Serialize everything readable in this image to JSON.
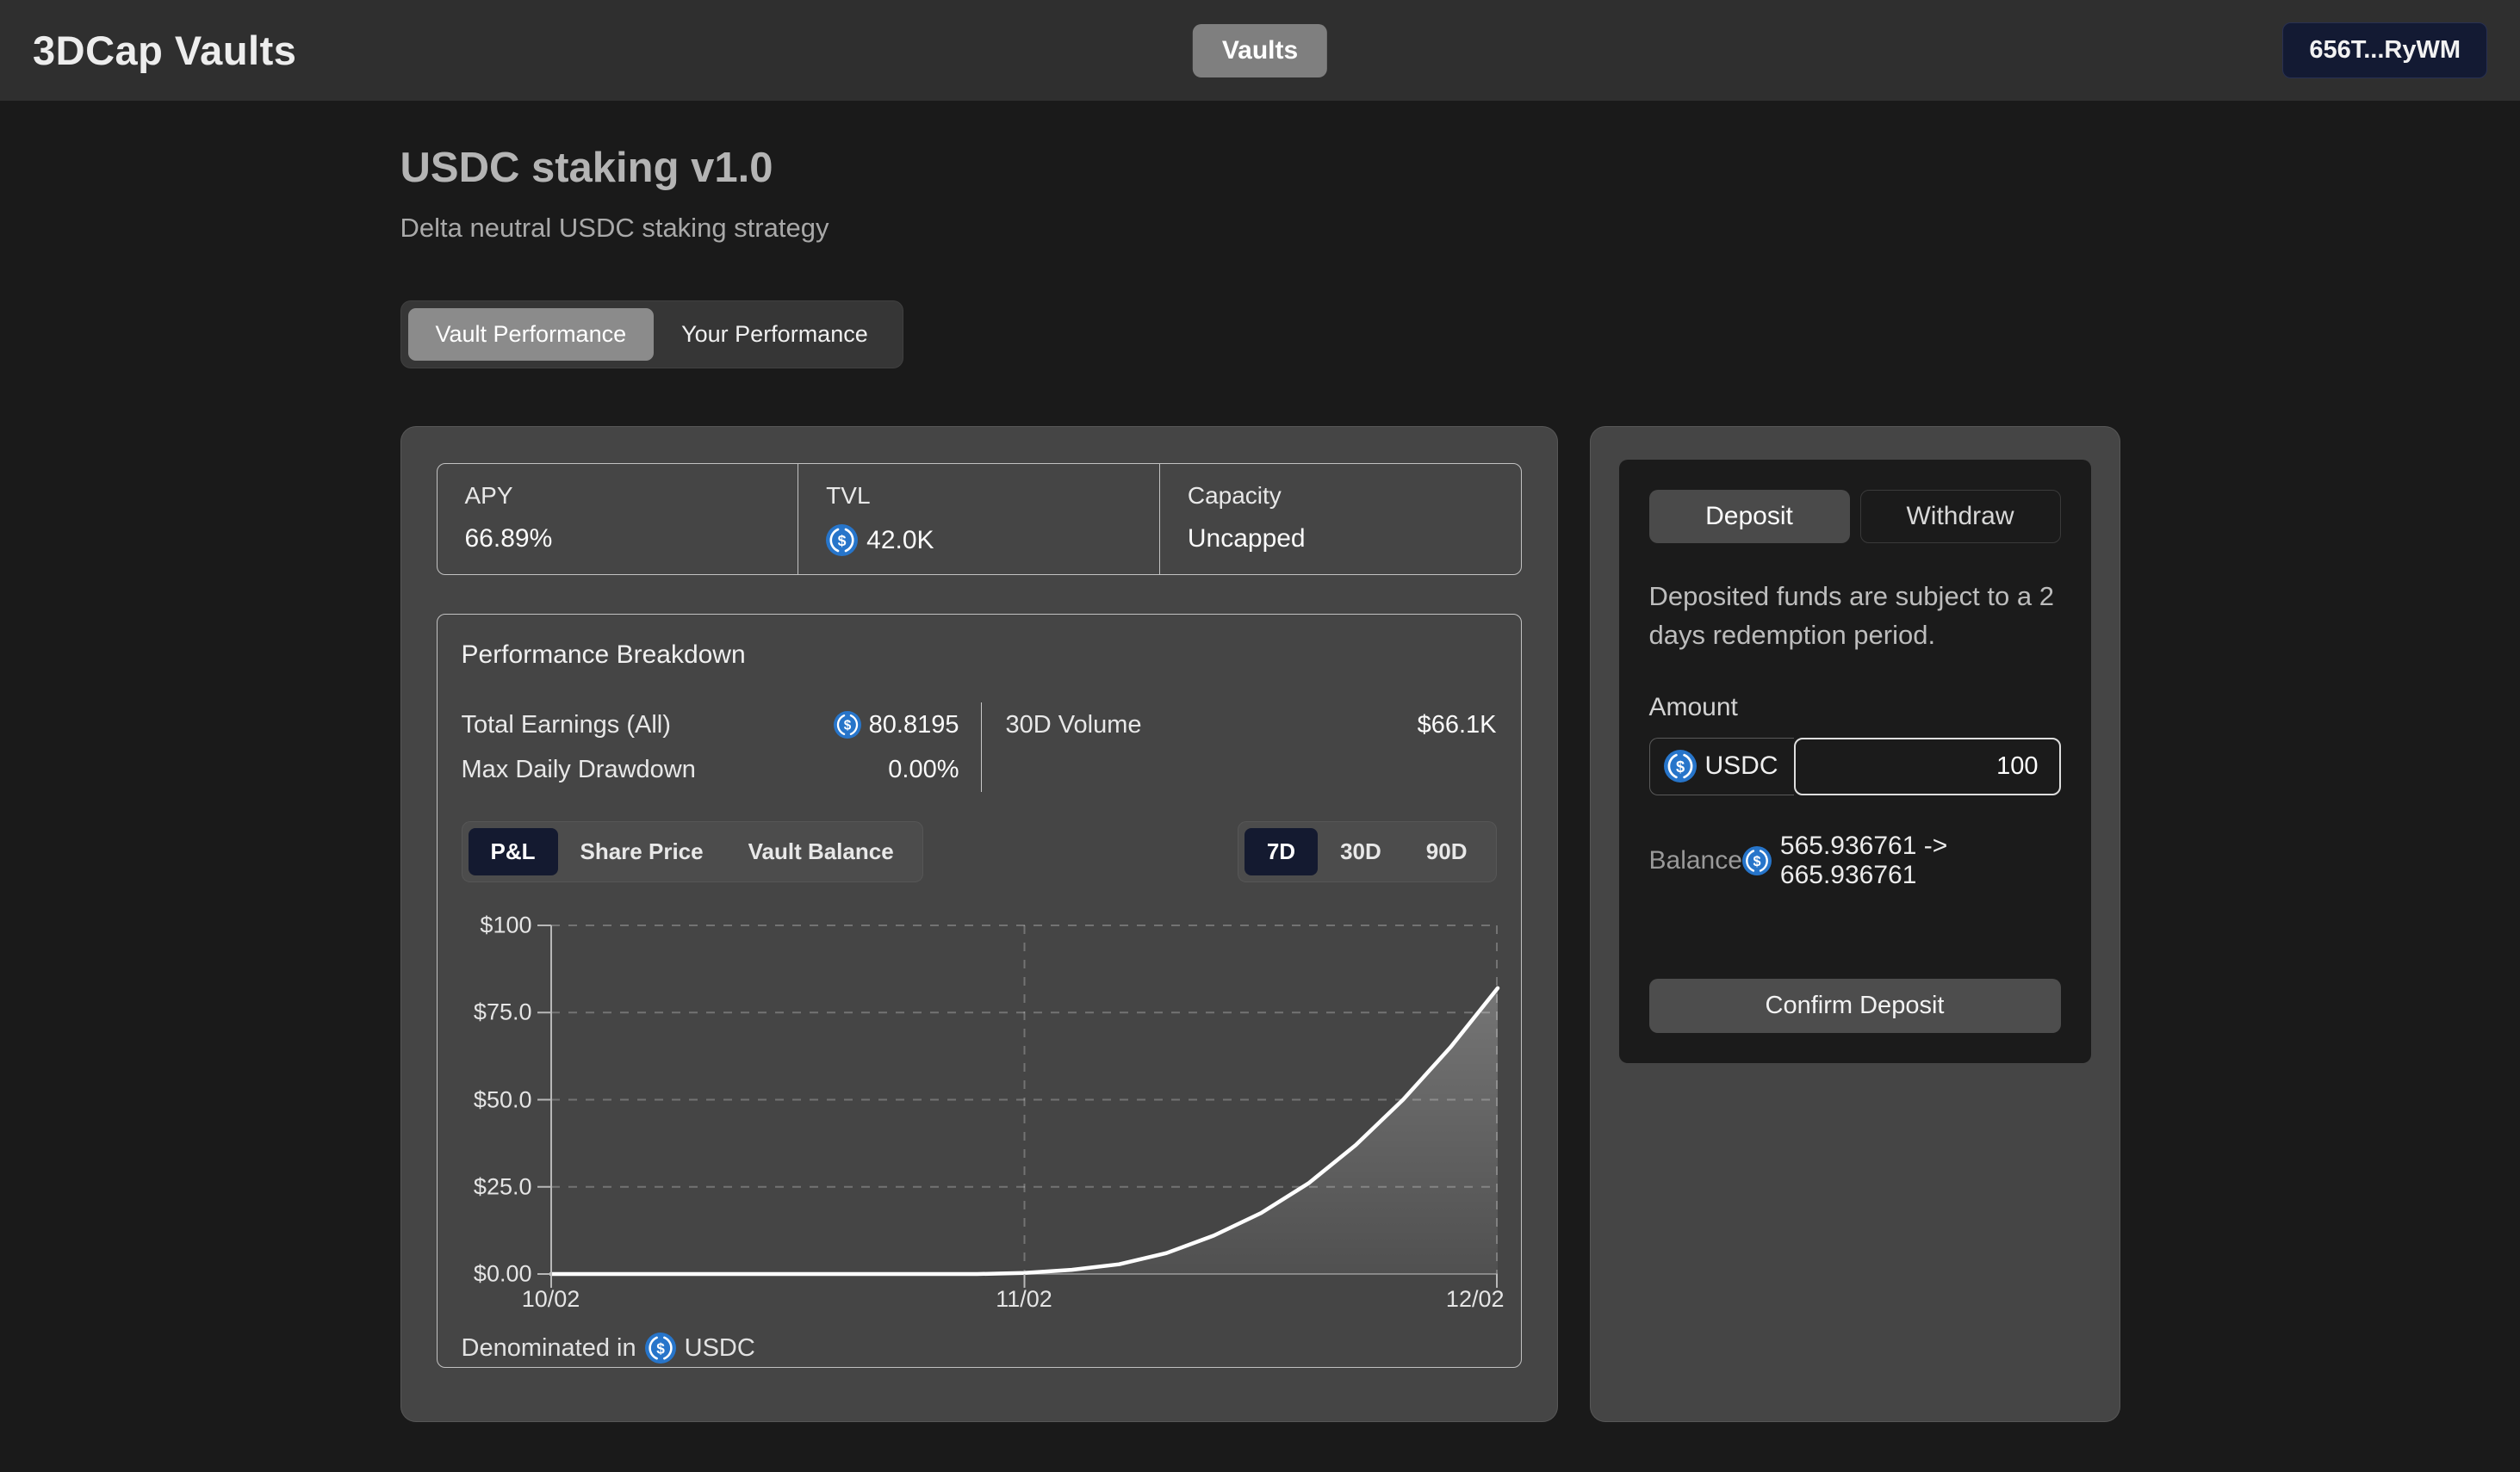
{
  "header": {
    "logo": "3DCap Vaults",
    "nav_button": "Vaults",
    "wallet_button": "656T...RyWM"
  },
  "page": {
    "title": "USDC staking v1.0",
    "subtitle": "Delta neutral USDC staking strategy"
  },
  "view_tabs": {
    "vault_performance": "Vault Performance",
    "your_performance": "Your Performance"
  },
  "stats": [
    {
      "label": "APY",
      "value": "66.89%",
      "icon": false
    },
    {
      "label": "TVL",
      "value": "42.0K",
      "icon": true
    },
    {
      "label": "Capacity",
      "value": "Uncapped",
      "icon": false
    }
  ],
  "breakdown": {
    "title": "Performance Breakdown",
    "total_earnings_label": "Total Earnings (All)",
    "total_earnings_value": "80.8195",
    "max_drawdown_label": "Max Daily Drawdown",
    "max_drawdown_value": "0.00%",
    "volume_label": "30D Volume",
    "volume_value": "$66.1K"
  },
  "chart_controls": {
    "metrics": [
      "P&L",
      "Share Price",
      "Vault Balance"
    ],
    "active_metric": "P&L",
    "ranges": [
      "7D",
      "30D",
      "90D"
    ],
    "active_range": "7D"
  },
  "chart_data": {
    "type": "area",
    "title": "P&L over 7D range",
    "x_tick_labels": [
      "10/02",
      "11/02",
      "12/02"
    ],
    "x_tick_pos": [
      0,
      0.5,
      1
    ],
    "y_ticks": [
      {
        "label": "$100",
        "value": 100
      },
      {
        "label": "$75.0",
        "value": 75
      },
      {
        "label": "$50.0",
        "value": 50
      },
      {
        "label": "$25.0",
        "value": 25
      },
      {
        "label": "$0.00",
        "value": 0
      }
    ],
    "ylim": [
      0,
      100
    ],
    "grid": "dashed",
    "legend_position": "none",
    "series": [
      {
        "name": "P&L ($)",
        "x": [
          0,
          0.1,
          0.2,
          0.3,
          0.4,
          0.45,
          0.5,
          0.55,
          0.6,
          0.65,
          0.7,
          0.75,
          0.8,
          0.85,
          0.9,
          0.95,
          1.0
        ],
        "values": [
          0,
          0,
          0,
          0,
          0,
          0,
          0.3,
          1.2,
          2.8,
          6,
          11,
          17.5,
          26,
          37,
          50,
          65,
          82
        ]
      }
    ],
    "line_color": "#ffffff",
    "denominated_in": "USDC"
  },
  "denominated": {
    "prefix": "Denominated in",
    "currency": "USDC"
  },
  "deposit_panel": {
    "deposit_tab": "Deposit",
    "withdraw_tab": "Withdraw",
    "active_tab": "Deposit",
    "notice": "Deposited funds are subject to a 2 days redemption period.",
    "amount_label": "Amount",
    "currency": "USDC",
    "amount_value": "100",
    "balance_label": "Balance",
    "balance_value": "565.936761 -> 665.936761",
    "confirm_label": "Confirm Deposit"
  },
  "colors": {
    "usdc_blue": "#2775CA",
    "active_pill_navy": "#141a30",
    "wallet_navy": "#131a33",
    "card_gray": "#454545",
    "page_bg": "#1a1a1a"
  }
}
